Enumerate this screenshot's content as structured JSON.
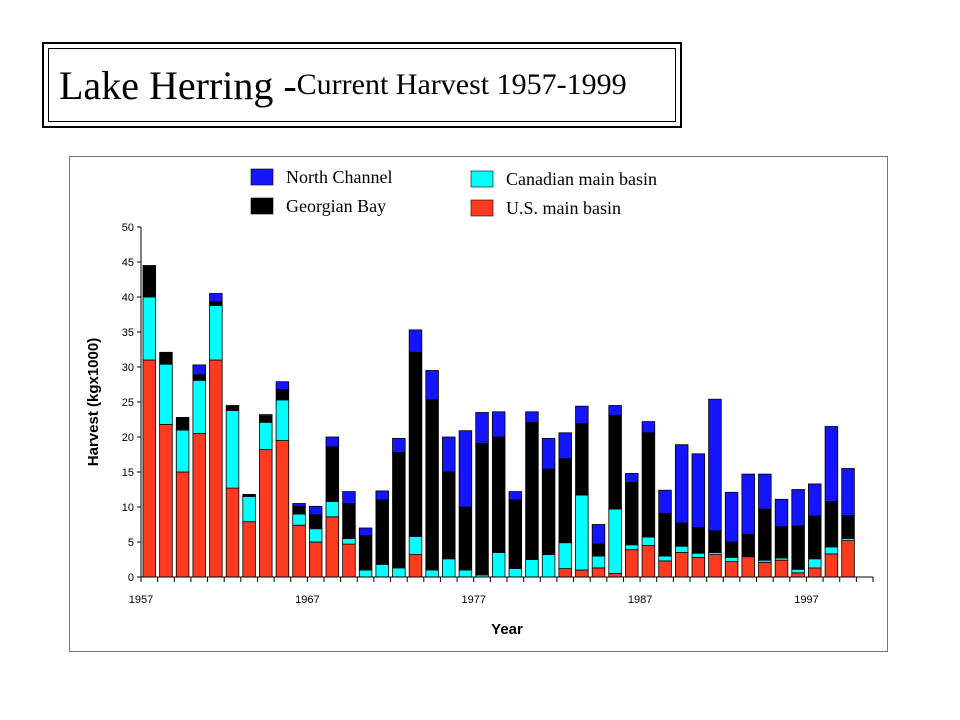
{
  "title": {
    "main": "Lake Herring - ",
    "sub": "Current Harvest 1957-1999"
  },
  "chart_data": {
    "type": "bar",
    "stacked": true,
    "title": "",
    "xlabel": "Year",
    "ylabel": "Harvest (kgx1000)",
    "ylim": [
      0,
      50
    ],
    "yticks": [
      0,
      5,
      10,
      15,
      20,
      25,
      30,
      35,
      40,
      45,
      50
    ],
    "xtick_labels": [
      "1957",
      "1967",
      "1977",
      "1987",
      "1997"
    ],
    "categories": [
      1957,
      1958,
      1959,
      1960,
      1961,
      1962,
      1963,
      1964,
      1965,
      1966,
      1967,
      1968,
      1969,
      1970,
      1971,
      1972,
      1973,
      1974,
      1975,
      1976,
      1977,
      1978,
      1979,
      1980,
      1981,
      1982,
      1983,
      1984,
      1985,
      1986,
      1987,
      1988,
      1989,
      1990,
      1991,
      1992,
      1993,
      1994,
      1995,
      1996,
      1997,
      1998,
      1999
    ],
    "legend_position": "top",
    "series": [
      {
        "name": "U.S. main basin",
        "color": "#ff3b1f",
        "values": [
          31,
          21.8,
          15,
          20.5,
          31,
          12.7,
          7.9,
          18.2,
          19.5,
          7.4,
          5,
          8.6,
          4.7,
          0,
          0,
          0,
          3.2,
          0,
          0,
          0,
          0,
          0,
          0,
          0,
          0,
          1.2,
          1,
          1.3,
          0.5,
          3.9,
          4.5,
          2.3,
          3.5,
          2.8,
          3.2,
          2.2,
          2.9,
          2.1,
          2.4,
          0.6,
          1.3,
          3.3,
          5.2
        ]
      },
      {
        "name": "Canadian main basin",
        "color": "#00ffff",
        "values": [
          9,
          8.6,
          6,
          7.6,
          7.8,
          11.1,
          3.6,
          3.9,
          5.8,
          1.6,
          1.9,
          2.2,
          0.8,
          1,
          1.8,
          1.3,
          2.6,
          1,
          2.6,
          1,
          0.3,
          3.5,
          1.2,
          2.5,
          3.2,
          3.7,
          10.7,
          1.7,
          9.2,
          0.7,
          1.2,
          0.7,
          0.9,
          0.6,
          0.3,
          0.6,
          0,
          0.3,
          0.3,
          0.5,
          1.3,
          1,
          0.3
        ]
      },
      {
        "name": "Georgian Bay",
        "color": "#000000",
        "values": [
          4.5,
          1.7,
          1.8,
          0.8,
          0.5,
          0.6,
          0.3,
          0.9,
          1.5,
          1.1,
          2,
          7.8,
          5,
          4.9,
          9.2,
          16.5,
          26.3,
          24.3,
          12.4,
          9,
          18.8,
          16.5,
          9.8,
          19.6,
          12.2,
          12,
          10.2,
          1.7,
          13.4,
          8.9,
          14.9,
          6.1,
          3.3,
          3.7,
          3.1,
          2.2,
          3.2,
          7.3,
          4.5,
          6.2,
          6.1,
          6.5,
          3.3
        ]
      },
      {
        "name": "North Channel",
        "color": "#1414ff",
        "values": [
          0,
          0,
          0,
          1.4,
          1.2,
          0.1,
          0,
          0.2,
          1.1,
          0.4,
          1.2,
          1.4,
          1.7,
          1.1,
          1.3,
          2,
          3.2,
          4.2,
          5,
          10.9,
          4.4,
          3.6,
          1.2,
          1.5,
          4.4,
          3.7,
          2.5,
          2.8,
          1.4,
          1.3,
          1.6,
          3.3,
          11.2,
          10.5,
          18.8,
          7.1,
          8.6,
          5,
          3.9,
          5.2,
          4.6,
          10.7,
          6.7
        ]
      }
    ]
  }
}
